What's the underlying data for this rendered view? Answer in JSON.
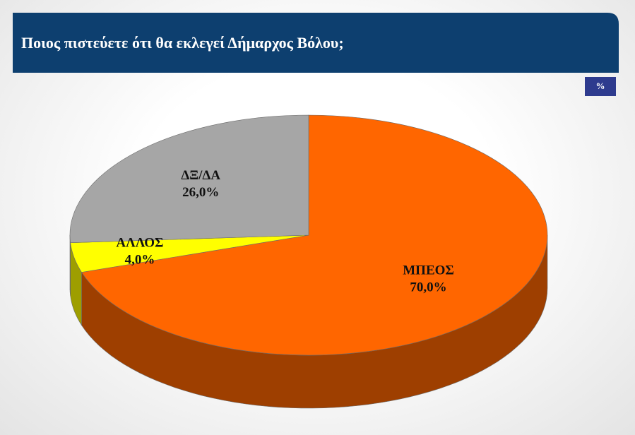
{
  "chart_data": {
    "type": "pie3d",
    "title": "Ποιος πιστεύετε ότι θα εκλεγεί Δήμαρχος Βόλου;",
    "unit_label": "%",
    "categories": [
      "ΜΠΕΟΣ",
      "ΑΛΛΟΣ",
      "ΔΞ/ΔΑ"
    ],
    "values": [
      70,
      4,
      26
    ],
    "value_labels": [
      "70,0%",
      "4,0%",
      "26,0%"
    ],
    "colors": [
      "#ff6600",
      "#ffff00",
      "#a6a6a6"
    ]
  }
}
